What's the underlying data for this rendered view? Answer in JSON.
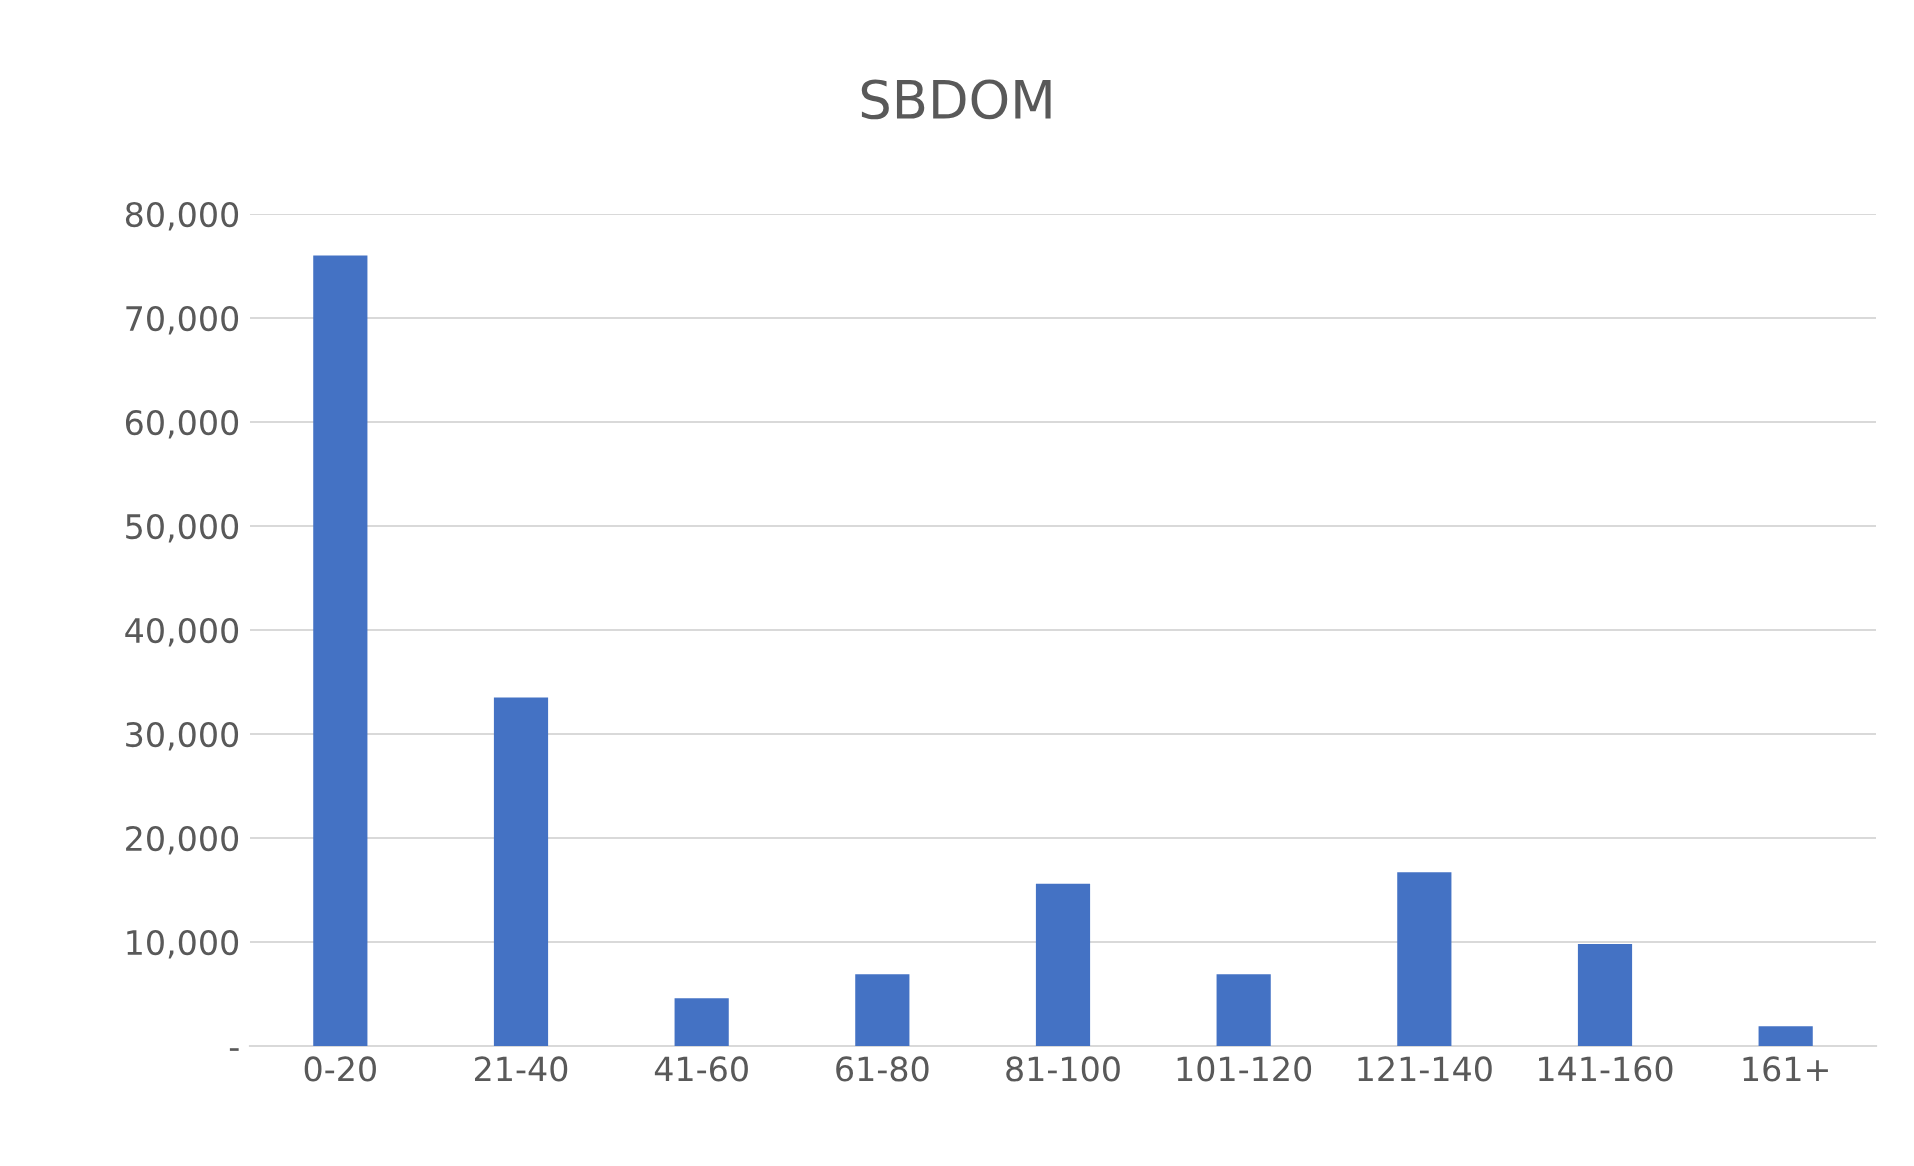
{
  "chart_data": {
    "type": "bar",
    "title": "SBDOM",
    "categories": [
      "0-20",
      "21-40",
      "41-60",
      "61-80",
      "81-100",
      "101-120",
      "121-140",
      "141-160",
      "161+"
    ],
    "values": [
      76000,
      33500,
      4600,
      6900,
      15600,
      6900,
      16700,
      9800,
      1900
    ],
    "color": "#4472c4",
    "ylim": [
      0,
      80000
    ],
    "yticks": [
      {
        "value": 0,
        "label": "-"
      },
      {
        "value": 10000,
        "label": "10,000"
      },
      {
        "value": 20000,
        "label": "20,000"
      },
      {
        "value": 30000,
        "label": "30,000"
      },
      {
        "value": 40000,
        "label": "40,000"
      },
      {
        "value": 50000,
        "label": "50,000"
      },
      {
        "value": 60000,
        "label": "60,000"
      },
      {
        "value": 70000,
        "label": "70,000"
      },
      {
        "value": 80000,
        "label": "80,000"
      }
    ],
    "grid": "y",
    "legend": false
  }
}
